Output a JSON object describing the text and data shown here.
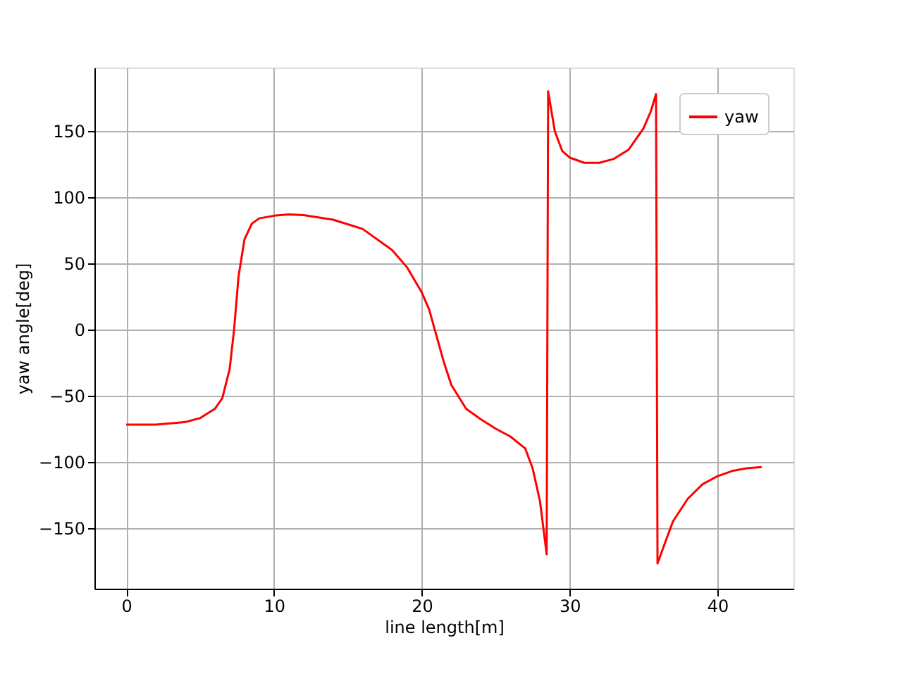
{
  "chart_data": {
    "type": "line",
    "xlabel": "line length[m]",
    "ylabel": "yaw angle[deg]",
    "xlim": [
      -2.15,
      45.15
    ],
    "ylim": [
      -196,
      198
    ],
    "xticks": [
      0,
      10,
      20,
      30,
      40
    ],
    "yticks": [
      -150,
      -100,
      -50,
      0,
      50,
      100,
      150
    ],
    "grid": true,
    "legend": "top right",
    "line_style": "solid",
    "marker": "none",
    "series": [
      {
        "name": "yaw",
        "color": "#ff0000",
        "x": [
          0,
          2,
          4,
          5,
          6,
          6.5,
          7,
          7.3,
          7.6,
          8,
          8.5,
          9,
          10,
          11,
          12,
          14,
          16,
          18,
          19,
          20,
          20.5,
          21,
          21.5,
          22,
          23,
          24,
          25,
          26,
          27,
          27.5,
          28,
          28.45,
          28.55,
          29,
          29.5,
          30,
          31,
          32,
          33,
          34,
          35,
          35.5,
          35.85,
          35.95,
          36.5,
          37,
          38,
          39,
          40,
          41,
          42,
          43
        ],
        "values": [
          -72,
          -72,
          -70,
          -67,
          -60,
          -52,
          -30,
          0,
          40,
          68,
          80,
          84,
          86,
          87,
          86.5,
          83,
          76,
          60,
          47,
          28,
          15,
          -5,
          -25,
          -42,
          -60,
          -68,
          -75,
          -81,
          -90,
          -105,
          -130,
          -170,
          180,
          150,
          135,
          130,
          126,
          126,
          129,
          136,
          152,
          165,
          178,
          -177,
          -160,
          -145,
          -128,
          -117,
          -111,
          -107,
          -105,
          -104
        ]
      }
    ]
  }
}
